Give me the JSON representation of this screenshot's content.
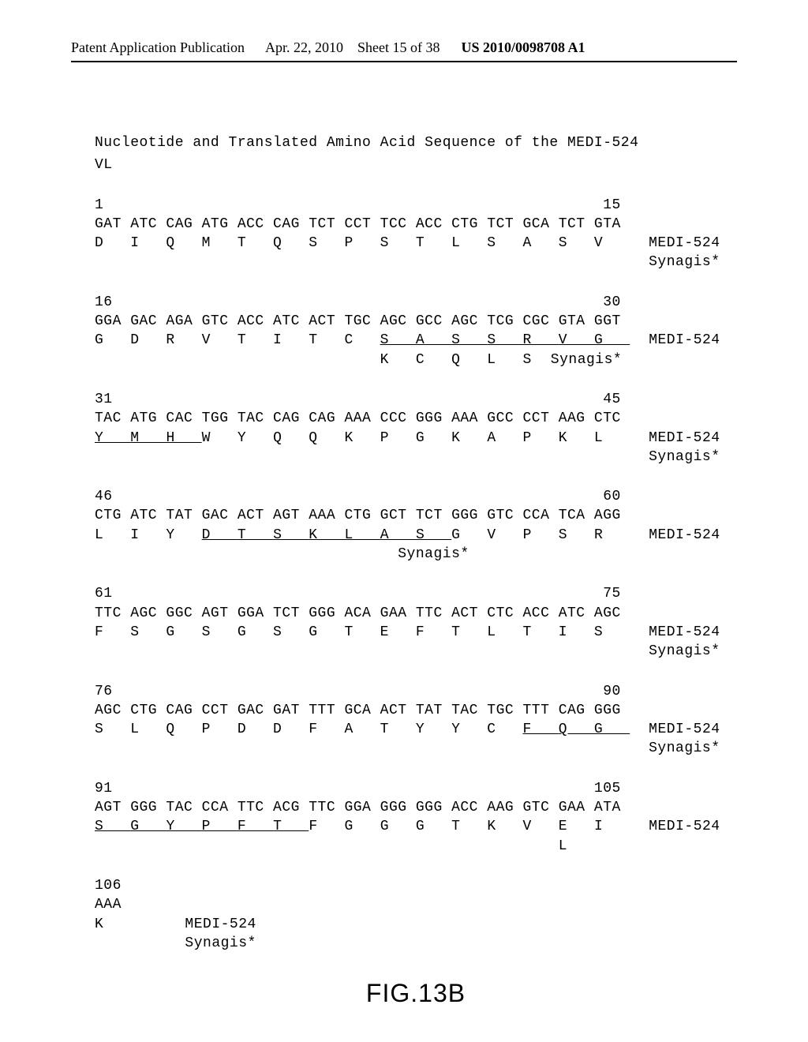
{
  "header": {
    "left": "Patent Application Publication",
    "date": "Apr. 22, 2010",
    "sheet": "Sheet 15 of 38",
    "pubnum": "US 2010/0098708 A1"
  },
  "title1": "Nucleotide and Translated Amino Acid Sequence of the MEDI-524",
  "title2": "VL",
  "labels": {
    "medi": "MEDI-524",
    "syn": "Synagis*"
  },
  "figure_label": "FIG.13B",
  "blocks": [
    {
      "numL": "1",
      "numR": "15",
      "nt": "GAT ATC CAG ATG ACC CAG TCT CCT TCC ACC CTG TCT GCA TCT GTA",
      "aa1": "D   I   Q   M   T   Q   S   P   S   T   L   S   A   S   V",
      "aa1_u": [],
      "aa2": "",
      "show_syn": true
    },
    {
      "numL": "16",
      "numR": "30",
      "nt": "GGA GAC AGA GTC ACC ATC ACT TGC AGC GCC AGC TCG CGC GTA GGT",
      "aa1": "G   D   R   V   T   I   T   C   S   A   S   S   R   V   G",
      "aa1_u": [
        8,
        9,
        10,
        11,
        12,
        13,
        14
      ],
      "aa2": "                                K   C   Q   L   S",
      "show_syn": true
    },
    {
      "numL": "31",
      "numR": "45",
      "nt": "TAC ATG CAC TGG TAC CAG CAG AAA CCC GGG AAA GCC CCT AAG CTC",
      "aa1": "Y   M   H   W   Y   Q   Q   K   P   G   K   A   P   K   L",
      "aa1_u": [
        0,
        1,
        2
      ],
      "aa2": "",
      "show_syn": true
    },
    {
      "numL": "46",
      "numR": "60",
      "nt": "CTG ATC TAT GAC ACT AGT AAA CTG GCT TCT GGG GTC CCA TCA AGG",
      "aa1": "L   I   Y   D   T   S   K   L   A   S   G   V   P   S   R",
      "aa1_u": [
        3,
        4,
        5,
        6,
        7,
        8,
        9
      ],
      "aa2": "                                  Synagis*",
      "show_syn": false,
      "syn_inline": true
    },
    {
      "numL": "61",
      "numR": "75",
      "nt": "TTC AGC GGC AGT GGA TCT GGG ACA GAA TTC ACT CTC ACC ATC AGC",
      "aa1": "F   S   G   S   G   S   G   T   E   F   T   L   T   I   S",
      "aa1_u": [],
      "aa2": "",
      "show_syn": true
    },
    {
      "numL": "76",
      "numR": "90",
      "nt": "AGC CTG CAG CCT GAC GAT TTT GCA ACT TAT TAC TGC TTT CAG GGG",
      "aa1": "S   L   Q   P   D   D   F   A   T   Y   Y   C   F   Q   G",
      "aa1_u": [
        12,
        13,
        14
      ],
      "aa2": "",
      "show_syn": true
    },
    {
      "numL": "91",
      "numR": "105",
      "nt": "AGT GGG TAC CCA TTC ACG TTC GGA GGG GGG ACC AAG GTC GAA ATA",
      "aa1": "S   G   Y   P   F   T   F   G   G   G   T   K   V   E   I",
      "aa1_u": [
        0,
        1,
        2,
        3,
        4,
        5
      ],
      "aa2": "                                                    L",
      "show_syn": false
    },
    {
      "numL": "106",
      "numR": "",
      "nt": "AAA",
      "aa1": "K",
      "aa1_u": [],
      "aa2": "",
      "show_syn": true,
      "short": true
    }
  ]
}
